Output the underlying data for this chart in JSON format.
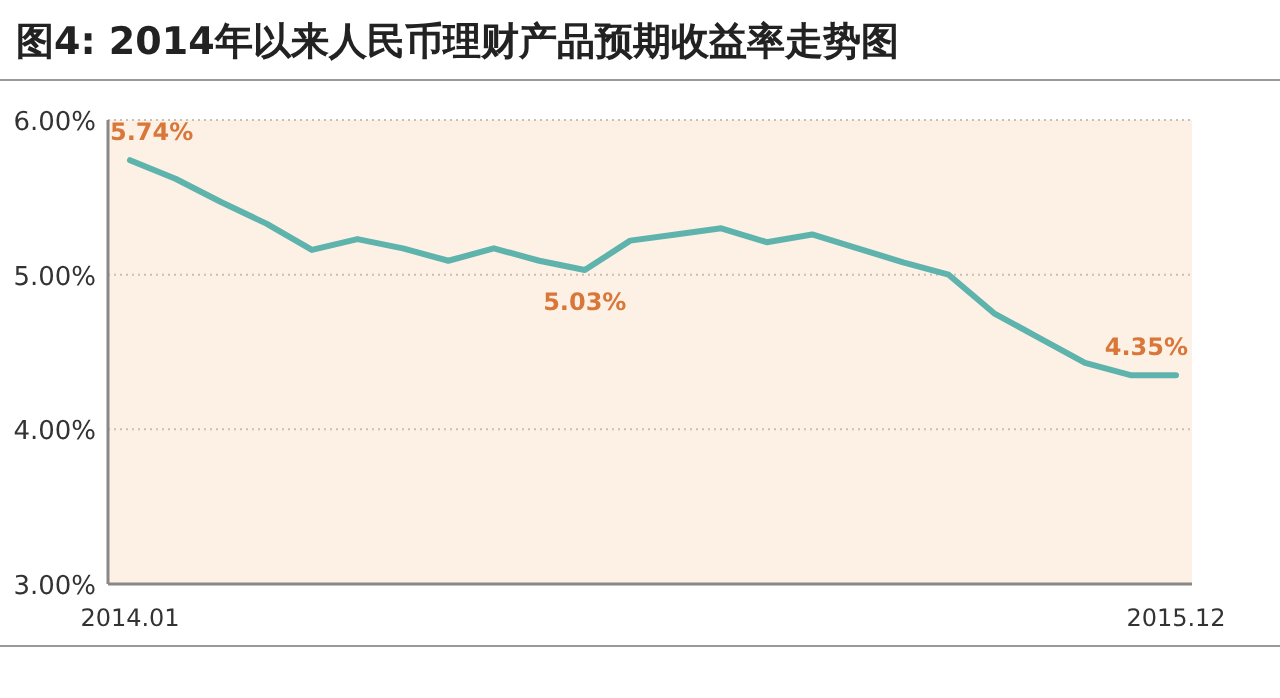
{
  "chart_data": {
    "type": "line",
    "title": "图4: 2014年以来人民币理财产品预期收益率走势图",
    "categories": [
      "2014.01",
      null,
      null,
      null,
      null,
      null,
      null,
      null,
      null,
      null,
      null,
      null,
      null,
      null,
      null,
      null,
      null,
      null,
      null,
      null,
      null,
      null,
      null,
      "2015.12"
    ],
    "values": [
      5.74,
      5.62,
      5.47,
      5.33,
      5.16,
      5.23,
      5.17,
      5.09,
      5.17,
      5.09,
      5.03,
      5.22,
      5.26,
      5.3,
      5.21,
      5.26,
      5.17,
      5.08,
      5.0,
      4.75,
      4.59,
      4.43,
      4.35,
      4.35
    ],
    "value_labels": [
      "5.74%",
      null,
      null,
      null,
      null,
      null,
      null,
      null,
      null,
      null,
      "5.03%",
      null,
      null,
      null,
      null,
      null,
      null,
      null,
      null,
      null,
      null,
      null,
      null,
      "4.35%"
    ],
    "color": "#5fb3ad",
    "ylim": [
      3,
      6
    ],
    "yticks": [
      {
        "value": 3,
        "label": "3.00%"
      },
      {
        "value": 4,
        "label": "4.00%"
      },
      {
        "value": 5,
        "label": "5.00%"
      },
      {
        "value": 6,
        "label": "6.00%"
      }
    ],
    "grid": "y",
    "line_style": "solid",
    "marker": "none"
  }
}
